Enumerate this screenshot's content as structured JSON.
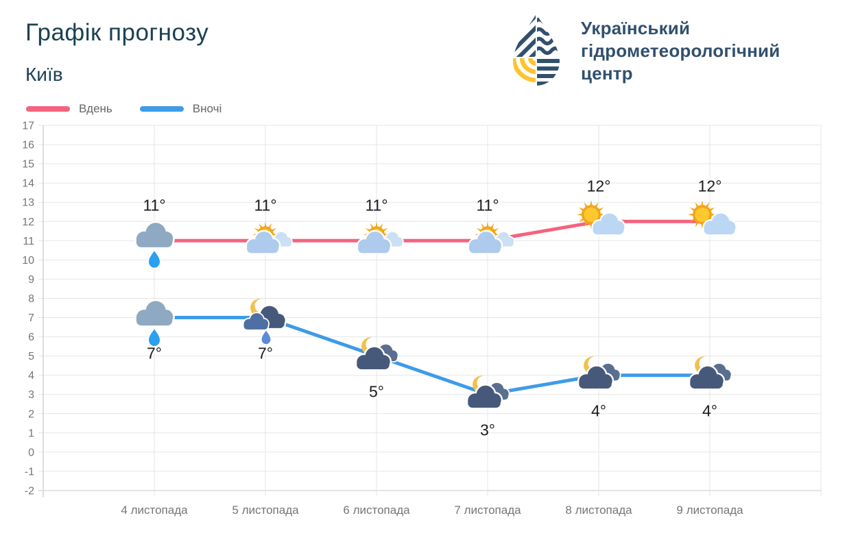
{
  "header": {
    "title": "Графік прогнозу",
    "subtitle": "Київ"
  },
  "logo": {
    "lines": [
      "Український",
      "гідрометеорологічний",
      "центр"
    ],
    "icon": "water-drop-logo",
    "navy": "#31506E",
    "yellow": "#FFC32C"
  },
  "theme": {
    "title_color": "#1B4152",
    "logo_text_color": "#31506E",
    "legend_text_color": "#666666",
    "axis_text_color": "#757575",
    "grid_color": "#E5E5E5",
    "axis_line_color": "#D2D2D2",
    "bottom_axis_color": "#C9C9C9",
    "temp_label_color": "#1B1B1B"
  },
  "chart_data": {
    "type": "line",
    "title": "Графік прогнозу",
    "location": "Київ",
    "categories": [
      "4 листопада",
      "5 листопада",
      "6 листопада",
      "7 листопада",
      "8 листопада",
      "9 листопада"
    ],
    "ylim": [
      -2,
      17
    ],
    "ytick_step": 1,
    "grid": true,
    "legend_position": "top-left",
    "series": [
      {
        "name": "Вдень",
        "color": "#F4637F",
        "values": [
          11,
          11,
          11,
          11,
          12,
          12
        ],
        "point_labels": [
          "11°",
          "11°",
          "11°",
          "11°",
          "12°",
          "12°"
        ],
        "label_position": "above",
        "icons": [
          "rain-cloud",
          "sun-behind-cloud",
          "sun-behind-cloud",
          "sun-behind-cloud",
          "sun-cloud",
          "sun-cloud"
        ]
      },
      {
        "name": "Вночі",
        "color": "#3D9BE9",
        "values": [
          7,
          7,
          5,
          3,
          4,
          4
        ],
        "point_labels": [
          "7°",
          "7°",
          "5°",
          "3°",
          "4°",
          "4°"
        ],
        "label_position": "below",
        "icons": [
          "rain-cloud",
          "moon-cloud-rain",
          "moon-cloud",
          "moon-cloud",
          "moon-cloud",
          "moon-cloud"
        ]
      }
    ]
  }
}
